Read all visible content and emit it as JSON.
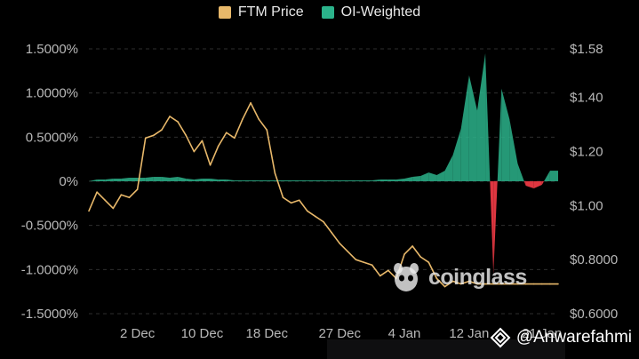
{
  "legend": {
    "price_label": "FTM Price",
    "oi_label": "OI-Weighted"
  },
  "watermark": {
    "text": "coinglass"
  },
  "handle": {
    "text": "@Anwarefahmi"
  },
  "colors": {
    "price": "#e8b86a",
    "positive": "#2bb38b",
    "negative": "#ea3943",
    "grid": "#2e2e2e",
    "tick": "#b8b8b8"
  },
  "chart_data": {
    "type": "line+area",
    "title": "",
    "x": [
      "Nov 26",
      "Nov 27",
      "Nov 28",
      "Nov 29",
      "Nov 30",
      "Dec 1",
      "Dec 2",
      "Dec 3",
      "Dec 4",
      "Dec 5",
      "Dec 6",
      "Dec 7",
      "Dec 8",
      "Dec 9",
      "Dec 10",
      "Dec 11",
      "Dec 12",
      "Dec 13",
      "Dec 14",
      "Dec 15",
      "Dec 16",
      "Dec 17",
      "Dec 18",
      "Dec 19",
      "Dec 20",
      "Dec 21",
      "Dec 22",
      "Dec 23",
      "Dec 24",
      "Dec 25",
      "Dec 26",
      "Dec 27",
      "Dec 28",
      "Dec 29",
      "Dec 30",
      "Dec 31",
      "Jan 1",
      "Jan 2",
      "Jan 3",
      "Jan 4",
      "Jan 5",
      "Jan 6",
      "Jan 7",
      "Jan 8",
      "Jan 9",
      "Jan 10",
      "Jan 11",
      "Jan 12",
      "Jan 13",
      "Jan 14",
      "Jan 15",
      "Jan 16",
      "Jan 17",
      "Jan 18",
      "Jan 19",
      "Jan 20",
      "Jan 21",
      "Jan 22",
      "Jan 23"
    ],
    "x_tick_labels": [
      "2 Dec",
      "10 Dec",
      "18 Dec",
      "27 Dec",
      "4 Jan",
      "12 Jan",
      "21 Jan"
    ],
    "x_tick_indices": [
      6,
      14,
      22,
      31,
      39,
      47,
      56
    ],
    "series": [
      {
        "name": "FTM Price",
        "axis": "right",
        "values": [
          0.98,
          1.05,
          1.02,
          0.99,
          1.04,
          1.03,
          1.06,
          1.25,
          1.26,
          1.28,
          1.33,
          1.31,
          1.26,
          1.2,
          1.24,
          1.15,
          1.22,
          1.27,
          1.25,
          1.32,
          1.38,
          1.32,
          1.28,
          1.12,
          1.03,
          1.01,
          1.02,
          0.98,
          0.96,
          0.94,
          0.9,
          0.86,
          0.83,
          0.8,
          0.79,
          0.78,
          0.74,
          0.76,
          0.73,
          0.82,
          0.85,
          0.81,
          0.79,
          0.73,
          0.7,
          0.72,
          0.71,
          0.72,
          0.71,
          0.71,
          0.71,
          0.71,
          0.71,
          0.71,
          0.71,
          0.71,
          0.71,
          0.71,
          0.71
        ]
      },
      {
        "name": "OI-Weighted",
        "axis": "left",
        "values": [
          0.0,
          0.02,
          0.02,
          0.03,
          0.03,
          0.04,
          0.04,
          0.04,
          0.05,
          0.05,
          0.04,
          0.05,
          0.03,
          0.02,
          0.03,
          0.03,
          0.02,
          0.02,
          0.01,
          0.01,
          0.01,
          0.01,
          0.01,
          0.01,
          0.01,
          0.01,
          0.01,
          0.01,
          0.01,
          0.01,
          0.01,
          0.01,
          0.01,
          0.01,
          0.01,
          0.01,
          0.02,
          0.02,
          0.02,
          0.03,
          0.05,
          0.06,
          0.1,
          0.07,
          0.12,
          0.3,
          0.6,
          1.2,
          0.8,
          1.45,
          -1.05,
          1.05,
          0.7,
          0.2,
          -0.05,
          -0.08,
          -0.04,
          0.12,
          0.12
        ]
      }
    ],
    "left_axis": {
      "ticks": [
        "1.5000%",
        "1.0000%",
        "0.5000%",
        "0%",
        "-0.5000%",
        "-1.0000%",
        "-1.5000%"
      ],
      "ylim": [
        -1.5,
        1.5
      ]
    },
    "right_axis": {
      "ticks": [
        "$1.58",
        "$1.40",
        "$1.20",
        "$1.00",
        "$0.8000",
        "$0.6000"
      ],
      "ylim": [
        0.6,
        1.58
      ]
    }
  }
}
